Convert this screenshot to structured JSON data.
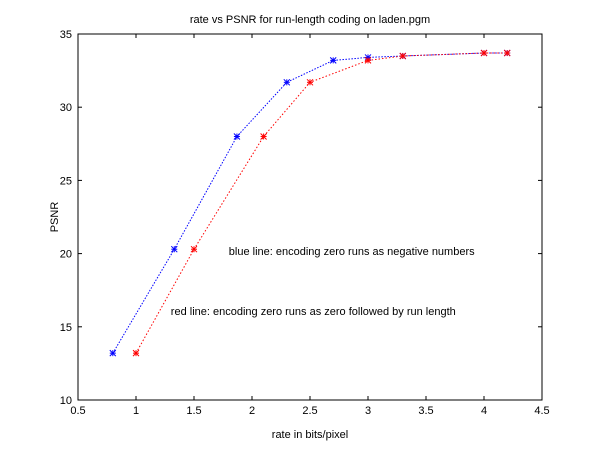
{
  "chart_data": {
    "type": "line",
    "title": "rate vs PSNR for run-length coding on laden.pgm",
    "xlabel": "rate in bits/pixel",
    "ylabel": "PSNR",
    "xlim": [
      0.5,
      4.5
    ],
    "ylim": [
      10,
      35
    ],
    "xticks": [
      "0.5",
      "1",
      "1.5",
      "2",
      "2.5",
      "3",
      "3.5",
      "4",
      "4.5"
    ],
    "yticks": [
      "10",
      "15",
      "20",
      "25",
      "30",
      "35"
    ],
    "grid": false,
    "series": [
      {
        "color": "#0000ff",
        "x": [
          0.8,
          1.33,
          1.87,
          2.3,
          2.7,
          3.0,
          3.3,
          4.0,
          4.2
        ],
        "y": [
          13.2,
          20.3,
          28.0,
          31.7,
          33.2,
          33.4,
          33.5,
          33.7,
          33.7
        ]
      },
      {
        "color": "#ff0000",
        "x": [
          1.0,
          1.5,
          2.1,
          2.5,
          3.0,
          3.3,
          4.0,
          4.2
        ],
        "y": [
          13.2,
          20.3,
          28.0,
          31.7,
          33.2,
          33.5,
          33.7,
          33.7
        ]
      }
    ],
    "annotations": [
      {
        "text": "blue line: encoding zero runs as negative numbers",
        "x": 1.8,
        "y": 19.9
      },
      {
        "text": "red line: encoding zero runs as zero followed by run length",
        "x": 1.3,
        "y": 15.8
      }
    ]
  }
}
